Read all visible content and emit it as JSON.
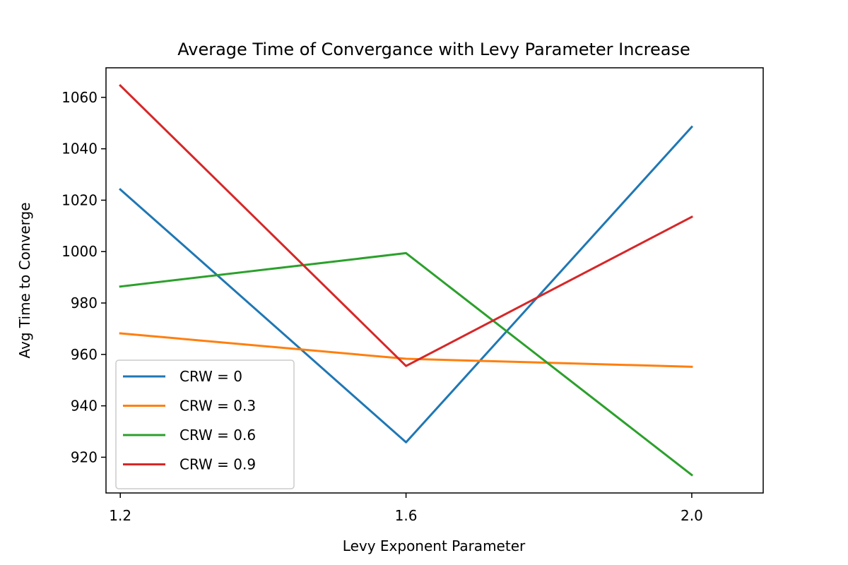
{
  "chart_data": {
    "type": "line",
    "title": "Average Time of Convergance with Levy Parameter Increase",
    "xlabel": "Levy Exponent Parameter",
    "ylabel": "Avg Time to Converge",
    "x": [
      1.2,
      1.6,
      2.0
    ],
    "x_tick_labels": [
      "1.2",
      "1.6",
      "2.0"
    ],
    "y_ticks": [
      920,
      940,
      960,
      980,
      1000,
      1020,
      1040,
      1060
    ],
    "xlim": [
      1.18,
      2.1
    ],
    "ylim": [
      906.1,
      1071.5
    ],
    "grid": false,
    "legend_position": "lower-left",
    "series": [
      {
        "name": "CRW = 0",
        "color": "#1f77b4",
        "values": [
          1024.2,
          925.8,
          1048.5
        ]
      },
      {
        "name": "CRW = 0.3",
        "color": "#ff7f0e",
        "values": [
          968.2,
          958.3,
          955.2
        ]
      },
      {
        "name": "CRW = 0.6",
        "color": "#2ca02c",
        "values": [
          986.4,
          999.4,
          913.1
        ]
      },
      {
        "name": "CRW = 0.9",
        "color": "#d62728",
        "values": [
          1064.6,
          955.5,
          1013.5
        ]
      }
    ]
  }
}
